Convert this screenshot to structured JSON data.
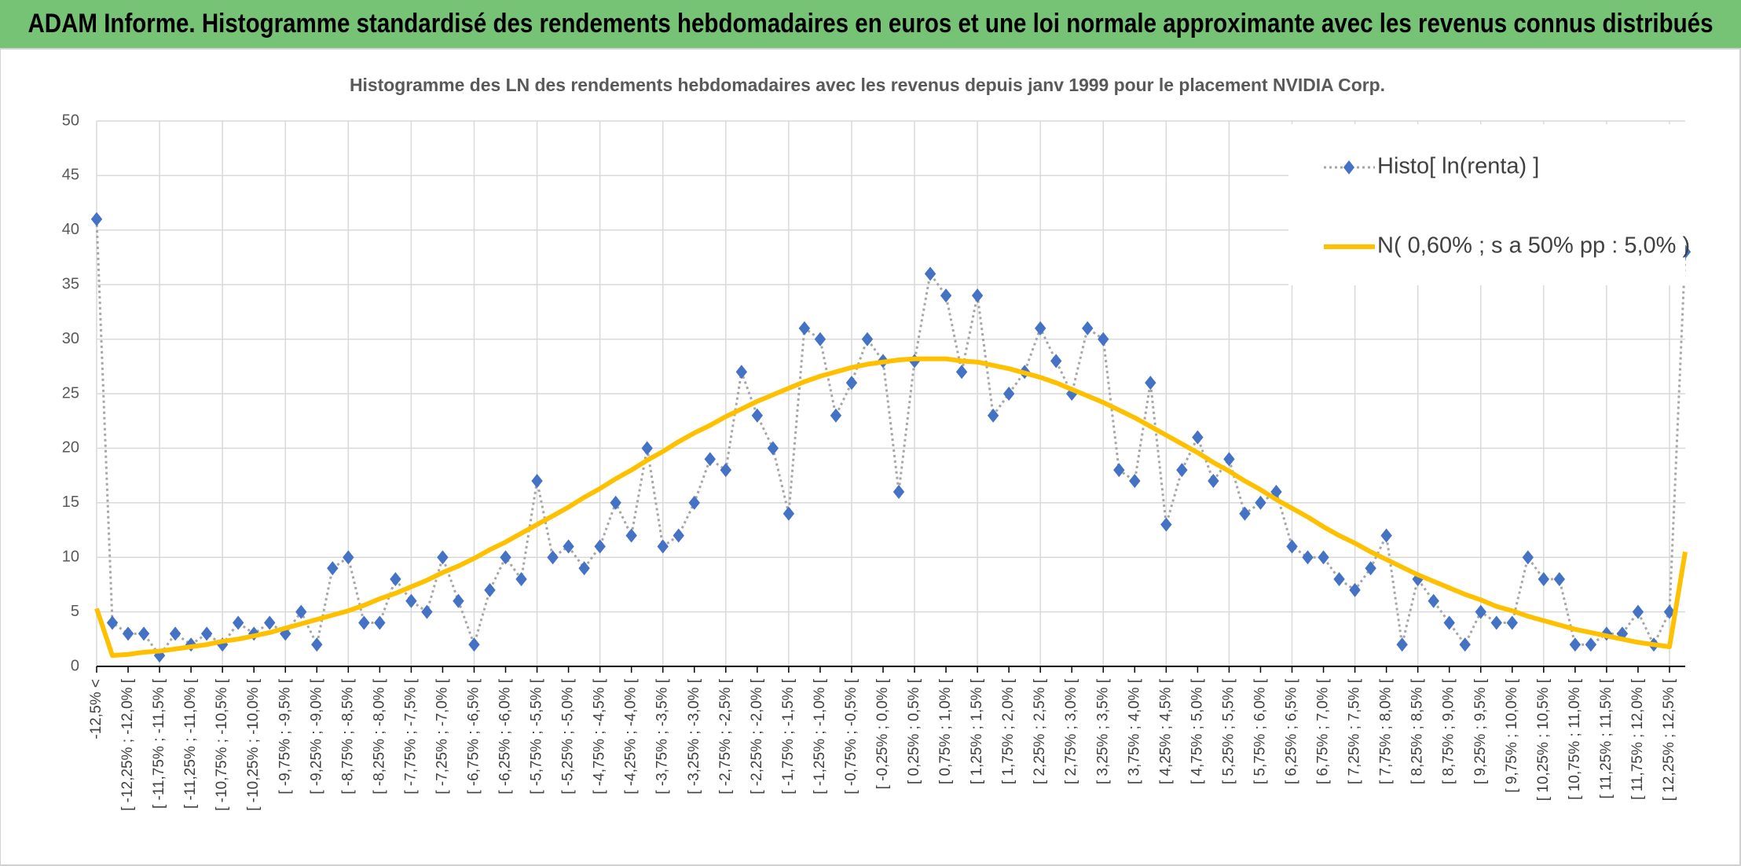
{
  "header": {
    "title": "ADAM Informe. Histogramme standardisé des rendements hebdomadaires en euros et une loi normale approximante avec les revenus connus distribués"
  },
  "chart_data": {
    "type": "line",
    "title": "Histogramme des LN des rendements hebdomadaires avec les revenus depuis janv 1999 pour le placement NVIDIA Corp.",
    "categories": [
      "-12,5% <",
      null,
      "[ -12,25% ; -12,0% [",
      null,
      "[ -11,75% ; -11,5% [",
      null,
      "[ -11,25% ; -11,0% [",
      null,
      "[ -10,75% ; -10,5% [",
      null,
      "[ -10,25% ; -10,0% [",
      null,
      "[ -9,75% ; -9,5% [",
      null,
      "[ -9,25% ; -9,0% [",
      null,
      "[ -8,75% ; -8,5% [",
      null,
      "[ -8,25% ; -8,0% [",
      null,
      "[ -7,75% ; -7,5% [",
      null,
      "[ -7,25% ; -7,0% [",
      null,
      "[ -6,75% ; -6,5% [",
      null,
      "[ -6,25% ; -6,0% [",
      null,
      "[ -5,75% ; -5,5% [",
      null,
      "[ -5,25% ; -5,0% [",
      null,
      "[ -4,75% ; -4,5% [",
      null,
      "[ -4,25% ; -4,0% [",
      null,
      "[ -3,75% ; -3,5% [",
      null,
      "[ -3,25% ; -3,0% [",
      null,
      "[ -2,75% ; -2,5% [",
      null,
      "[ -2,25% ; -2,0% [",
      null,
      "[ -1,75% ; -1,5% [",
      null,
      "[ -1,25% ; -1,0% [",
      null,
      "[ -0,75% ; -0,5% [",
      null,
      "[ -0,25% ; 0,0% [",
      null,
      "[ 0,25% ; 0,5% [",
      null,
      "[ 0,75% ; 1,0% [",
      null,
      "[ 1,25% ; 1,5% [",
      null,
      "[ 1,75% ; 2,0% [",
      null,
      "[ 2,25% ; 2,5% [",
      null,
      "[ 2,75% ; 3,0% [",
      null,
      "[ 3,25% ; 3,5% [",
      null,
      "[ 3,75% ; 4,0% [",
      null,
      "[ 4,25% ; 4,5% [",
      null,
      "[ 4,75% ; 5,0% [",
      null,
      "[ 5,25% ; 5,5% [",
      null,
      "[ 5,75% ; 6,0% [",
      null,
      "[ 6,25% ; 6,5% [",
      null,
      "[ 6,75% ; 7,0% [",
      null,
      "[ 7,25% ; 7,5% [",
      null,
      "[ 7,75% ; 8,0% [",
      null,
      "[ 8,25% ; 8,5% [",
      null,
      "[ 8,75% ; 9,0% [",
      null,
      "[ 9,25% ; 9,5% [",
      null,
      "[ 9,75% ; 10,0% [",
      null,
      "[ 10,25% ; 10,5% [",
      null,
      "[ 10,75% ; 11,0% [",
      null,
      "[ 11,25% ; 11,5% [",
      null,
      "[ 11,75% ; 12,0% [",
      null,
      "[ 12,25% ; 12,5% [",
      null
    ],
    "series": [
      {
        "name": "Histo[ ln(renta) ]",
        "color": "#4472c4",
        "line_color": "#a6a6a6",
        "values": [
          41,
          4,
          3,
          3,
          1,
          3,
          2,
          3,
          2,
          4,
          3,
          4,
          3,
          5,
          2,
          9,
          10,
          4,
          4,
          8,
          6,
          5,
          10,
          6,
          2,
          7,
          10,
          8,
          17,
          10,
          11,
          9,
          11,
          15,
          12,
          20,
          11,
          12,
          15,
          19,
          18,
          27,
          23,
          20,
          14,
          31,
          30,
          23,
          26,
          30,
          28,
          16,
          28,
          36,
          34,
          27,
          34,
          23,
          25,
          27,
          31,
          28,
          25,
          31,
          30,
          18,
          17,
          26,
          13,
          18,
          21,
          17,
          19,
          14,
          15,
          16,
          11,
          10,
          10,
          8,
          7,
          9,
          12,
          2,
          8,
          6,
          4,
          2,
          5,
          4,
          4,
          10,
          8,
          8,
          2,
          2,
          3,
          3,
          5,
          2,
          5,
          38
        ]
      },
      {
        "name": "N( 0,60% ; s a 50% pp : 5,0% )",
        "color": "#ffc000",
        "values": [
          5.3,
          1.0,
          1.1,
          1.3,
          1.4,
          1.6,
          1.8,
          2.0,
          2.3,
          2.5,
          2.8,
          3.1,
          3.5,
          3.9,
          4.3,
          4.7,
          5.1,
          5.6,
          6.2,
          6.7,
          7.3,
          7.9,
          8.6,
          9.2,
          9.9,
          10.7,
          11.4,
          12.2,
          13.0,
          13.8,
          14.6,
          15.5,
          16.3,
          17.2,
          18.0,
          18.9,
          19.7,
          20.6,
          21.4,
          22.1,
          22.9,
          23.6,
          24.3,
          24.9,
          25.5,
          26.1,
          26.6,
          27.0,
          27.4,
          27.7,
          27.9,
          28.1,
          28.2,
          28.2,
          28.2,
          28.0,
          27.9,
          27.6,
          27.3,
          26.9,
          26.5,
          26.0,
          25.4,
          24.8,
          24.2,
          23.5,
          22.8,
          22.0,
          21.2,
          20.4,
          19.6,
          18.7,
          17.9,
          17.0,
          16.2,
          15.3,
          14.5,
          13.7,
          12.8,
          12.0,
          11.3,
          10.5,
          9.8,
          9.1,
          8.4,
          7.8,
          7.2,
          6.6,
          6.1,
          5.5,
          5.1,
          4.6,
          4.2,
          3.8,
          3.4,
          3.1,
          2.8,
          2.5,
          2.2,
          2.0,
          1.8,
          10.5
        ]
      }
    ],
    "ylim": [
      0,
      50
    ],
    "yticks": [
      0,
      5,
      10,
      15,
      20,
      25,
      30,
      35,
      40,
      45,
      50
    ],
    "grid": true,
    "legend": "top-right"
  }
}
